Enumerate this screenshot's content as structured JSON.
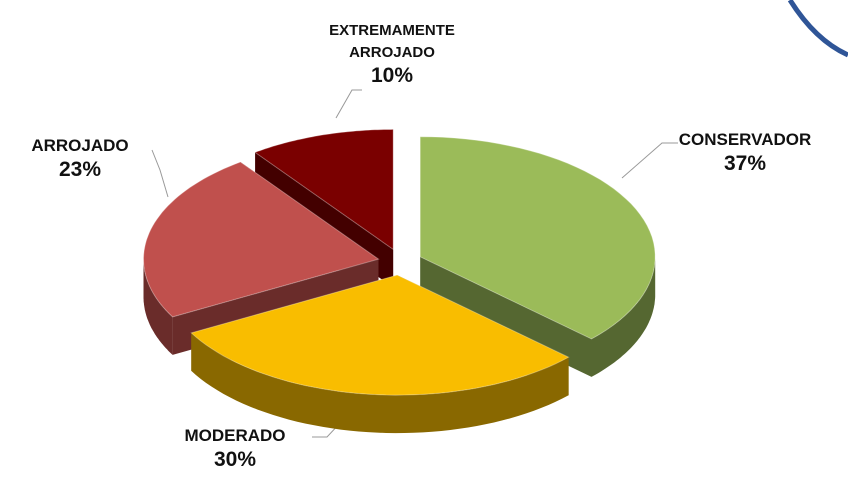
{
  "chart_data": {
    "type": "pie3d",
    "categories": [
      "CONSERVADOR",
      "MODERADO",
      "ARROJADO",
      "EXTREMAMENTE ARROJADO"
    ],
    "values": [
      37,
      30,
      23,
      10
    ],
    "value_labels": [
      "37%",
      "30%",
      "23%",
      "10%"
    ],
    "colors": [
      "#9bbb59",
      "#f9bd00",
      "#c0504d",
      "#7a0000"
    ]
  }
}
